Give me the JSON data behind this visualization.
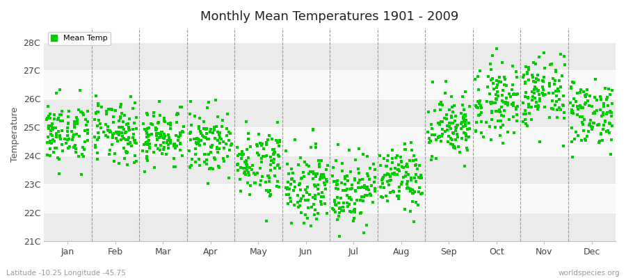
{
  "title": "Monthly Mean Temperatures 1901 - 2009",
  "ylabel": "Temperature",
  "subtitle": "Latitude -10.25 Longitude -45.75",
  "watermark": "worldspecies.org",
  "dot_color": "#00CC00",
  "bg_color": "#FFFFFF",
  "plot_bg_color": "#FFFFFF",
  "legend_label": "Mean Temp",
  "ylim": [
    21,
    28.5
  ],
  "ytick_labels": [
    "21C",
    "22C",
    "23C",
    "24C",
    "25C",
    "26C",
    "27C",
    "28C"
  ],
  "ytick_values": [
    21,
    22,
    23,
    24,
    25,
    26,
    27,
    28
  ],
  "months": [
    "Jan",
    "Feb",
    "Mar",
    "Apr",
    "May",
    "Jun",
    "Jul",
    "Aug",
    "Sep",
    "Oct",
    "Nov",
    "Dec"
  ],
  "n_years": 109,
  "seed": 42,
  "month_means": [
    24.8,
    24.8,
    24.7,
    24.5,
    23.8,
    23.0,
    22.8,
    23.2,
    25.0,
    26.0,
    26.2,
    25.5
  ],
  "month_stds": [
    0.55,
    0.55,
    0.5,
    0.55,
    0.6,
    0.65,
    0.65,
    0.55,
    0.6,
    0.65,
    0.65,
    0.6
  ]
}
